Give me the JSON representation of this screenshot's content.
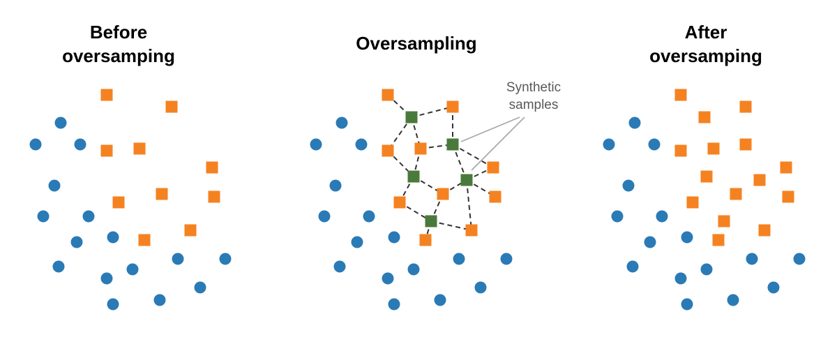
{
  "panels": {
    "before": {
      "title_line1": "Before",
      "title_line2": "oversamping"
    },
    "oversampling": {
      "title": "Oversampling",
      "annotation_line1": "Synthetic",
      "annotation_line2": "samples"
    },
    "after": {
      "title_line1": "After",
      "title_line2": "oversamping"
    }
  },
  "colors": {
    "majority_circle": "#2a7ab6",
    "minority_square": "#f58220",
    "synthetic_square": "#4a7a3b",
    "dashed_line": "#333333",
    "pointer_line": "#a6a6a6"
  },
  "marker_kinds": [
    "majority-circle",
    "minority-square",
    "synthetic-square"
  ]
}
